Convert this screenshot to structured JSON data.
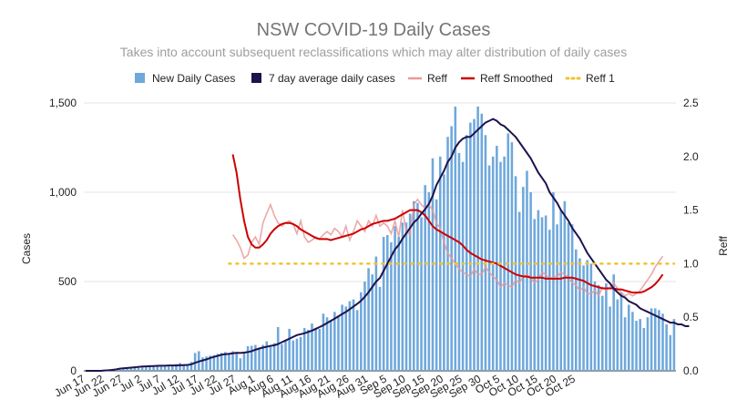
{
  "chart_data": {
    "type": "bar",
    "title": "NSW COVID-19 Daily Cases",
    "subtitle": "Takes into account subsequent reclassifications which may alter distribution of daily cases",
    "ylabel": "Cases",
    "y2label": "Reff",
    "ylim": [
      0,
      1500
    ],
    "y2lim": [
      0,
      2.5
    ],
    "yticks": [
      "0",
      "500",
      "1,000",
      "1,500"
    ],
    "y2ticks": [
      "0.0",
      "0.5",
      "1.0",
      "1.5",
      "2.0",
      "2.5"
    ],
    "xticks": [
      "Jun 17",
      "Jun 22",
      "Jun 27",
      "Jul 2",
      "Jul 7",
      "Jul 12",
      "Jul 17",
      "Jul 22",
      "Jul 27",
      "Aug 1",
      "Aug 6",
      "Aug 11",
      "Aug 16",
      "Aug 21",
      "Aug 26",
      "Aug 31",
      "Sep 5",
      "Sep 10",
      "Sep 15",
      "Sep 20",
      "Sep 25",
      "Sep 30",
      "Oct 5",
      "Oct 10",
      "Oct 15",
      "Oct 20",
      "Oct 25"
    ],
    "x_start": "Jun 17",
    "legend": {
      "position": "top",
      "items": [
        {
          "label": "New Daily Cases",
          "color": "#6fa8dc",
          "shape": "box"
        },
        {
          "label": "7 day average daily cases",
          "color": "#20124d",
          "shape": "box"
        },
        {
          "label": "Reff",
          "color": "#ea9999",
          "shape": "line"
        },
        {
          "label": "Reff Smoothed",
          "color": "#cc0000",
          "shape": "line"
        },
        {
          "label": "Reff 1",
          "color": "#f1c232",
          "shape": "dotted"
        }
      ]
    },
    "series": [
      {
        "name": "New Daily Cases",
        "axis": "left",
        "color": "#6fa8dc",
        "values": [
          0,
          0,
          0,
          0,
          0,
          3,
          4,
          7,
          7,
          10,
          13,
          18,
          20,
          22,
          27,
          24,
          24,
          26,
          30,
          25,
          30,
          32,
          25,
          32,
          38,
          44,
          35,
          32,
          50,
          100,
          110,
          75,
          80,
          85,
          88,
          95,
          100,
          105,
          98,
          110,
          105,
          70,
          105,
          138,
          140,
          145,
          125,
          145,
          165,
          140,
          155,
          245,
          150,
          170,
          235,
          170,
          180,
          190,
          240,
          230,
          265,
          240,
          235,
          320,
          300,
          285,
          330,
          310,
          370,
          360,
          390,
          400,
          340,
          440,
          500,
          575,
          540,
          640,
          470,
          750,
          760,
          720,
          810,
          750,
          830,
          830,
          880,
          950,
          940,
          860,
          1040,
          1000,
          1190,
          960,
          1200,
          1100,
          1310,
          1370,
          1480,
          1220,
          1170,
          1320,
          1390,
          1410,
          1480,
          1440,
          1320,
          1150,
          1200,
          1260,
          1170,
          1200,
          1330,
          1280,
          1090,
          890,
          1030,
          1120,
          1000,
          850,
          900,
          860,
          870,
          790,
          1000,
          820,
          900,
          950,
          830,
          820,
          680,
          630,
          590,
          620,
          600,
          500,
          480,
          420,
          490,
          360,
          540,
          400,
          440,
          300,
          370,
          330,
          280,
          290,
          240,
          300,
          350,
          350,
          340,
          320,
          260,
          200,
          290
        ]
      },
      {
        "name": "7 day average daily cases",
        "axis": "left",
        "color": "#20124d",
        "values": [
          0,
          0,
          0,
          0,
          0,
          2,
          3,
          5,
          8,
          12,
          14,
          16,
          18,
          20,
          22,
          24,
          25,
          26,
          27,
          28,
          29,
          29,
          30,
          30,
          30,
          31,
          32,
          33,
          36,
          45,
          52,
          58,
          64,
          72,
          78,
          84,
          90,
          93,
          95,
          98,
          101,
          100,
          102,
          105,
          110,
          118,
          125,
          130,
          135,
          140,
          143,
          150,
          160,
          170,
          180,
          190,
          200,
          205,
          210,
          218,
          225,
          235,
          245,
          255,
          268,
          280,
          292,
          305,
          318,
          330,
          345,
          360,
          375,
          392,
          415,
          440,
          470,
          500,
          520,
          560,
          600,
          640,
          680,
          705,
          740,
          770,
          800,
          830,
          850,
          880,
          905,
          935,
          980,
          1040,
          1080,
          1120,
          1170,
          1200,
          1250,
          1280,
          1300,
          1310,
          1310,
          1330,
          1350,
          1370,
          1390,
          1400,
          1410,
          1400,
          1380,
          1370,
          1350,
          1330,
          1310,
          1280,
          1250,
          1220,
          1190,
          1150,
          1110,
          1080,
          1050,
          1000,
          970,
          940,
          900,
          870,
          840,
          800,
          770,
          740,
          700,
          660,
          630,
          600,
          570,
          540,
          510,
          490,
          460,
          440,
          420,
          410,
          390,
          380,
          370,
          350,
          340,
          330,
          320,
          310,
          300,
          290,
          280,
          270,
          270,
          260,
          260,
          250,
          250
        ]
      },
      {
        "name": "Reff",
        "axis": "right",
        "color": "#ea9999",
        "values": [
          null,
          null,
          null,
          null,
          null,
          null,
          null,
          null,
          null,
          null,
          null,
          null,
          null,
          null,
          null,
          null,
          null,
          null,
          null,
          null,
          null,
          null,
          null,
          null,
          null,
          null,
          null,
          null,
          null,
          null,
          null,
          null,
          null,
          null,
          null,
          null,
          null,
          null,
          null,
          1.27,
          1.22,
          1.15,
          1.05,
          1.08,
          1.2,
          1.25,
          1.18,
          1.38,
          1.47,
          1.55,
          1.45,
          1.38,
          1.35,
          1.38,
          1.4,
          1.37,
          1.28,
          1.4,
          1.25,
          1.2,
          1.22,
          1.25,
          1.23,
          1.27,
          1.3,
          1.27,
          1.33,
          1.3,
          1.25,
          1.35,
          1.22,
          1.3,
          1.4,
          1.35,
          1.3,
          1.4,
          1.35,
          1.45,
          1.35,
          1.38,
          1.35,
          1.28,
          1.4,
          1.25,
          1.5,
          1.3,
          1.27,
          1.55,
          1.6,
          1.55,
          1.52,
          1.55,
          1.5,
          1.38,
          1.33,
          1.2,
          1.1,
          1.05,
          1.0,
          0.95,
          0.92,
          0.9,
          0.88,
          0.95,
          0.9,
          0.9,
          0.97,
          0.92,
          0.88,
          0.85,
          0.78,
          0.82,
          0.8,
          0.78,
          0.85,
          0.82,
          0.88,
          0.9,
          0.87,
          0.82,
          0.85,
          0.92,
          0.9,
          0.85,
          0.88,
          0.88,
          0.92,
          0.9,
          0.87,
          0.82,
          0.8,
          0.75,
          0.78,
          0.72,
          0.72,
          0.75,
          0.7,
          0.78,
          0.75,
          0.78,
          0.82,
          0.77,
          0.73,
          0.7,
          0.72,
          0.7,
          0.72,
          0.75,
          0.8,
          0.85,
          0.9,
          0.97,
          1.02,
          1.07
        ]
      },
      {
        "name": "Reff Smoothed",
        "axis": "right",
        "color": "#cc0000",
        "values": [
          null,
          null,
          null,
          null,
          null,
          null,
          null,
          null,
          null,
          null,
          null,
          null,
          null,
          null,
          null,
          null,
          null,
          null,
          null,
          null,
          null,
          null,
          null,
          null,
          null,
          null,
          null,
          null,
          null,
          null,
          null,
          null,
          null,
          null,
          null,
          null,
          null,
          null,
          null,
          2.02,
          1.85,
          1.6,
          1.4,
          1.25,
          1.18,
          1.15,
          1.15,
          1.18,
          1.22,
          1.28,
          1.32,
          1.35,
          1.37,
          1.38,
          1.38,
          1.37,
          1.35,
          1.32,
          1.3,
          1.28,
          1.26,
          1.24,
          1.23,
          1.23,
          1.23,
          1.22,
          1.23,
          1.24,
          1.25,
          1.26,
          1.27,
          1.28,
          1.3,
          1.32,
          1.33,
          1.35,
          1.37,
          1.38,
          1.39,
          1.4,
          1.4,
          1.41,
          1.42,
          1.44,
          1.46,
          1.48,
          1.5,
          1.5,
          1.5,
          1.48,
          1.45,
          1.4,
          1.35,
          1.32,
          1.3,
          1.28,
          1.26,
          1.24,
          1.22,
          1.2,
          1.17,
          1.13,
          1.1,
          1.08,
          1.06,
          1.04,
          1.03,
          1.02,
          1.01,
          1.0,
          0.98,
          0.96,
          0.94,
          0.92,
          0.9,
          0.89,
          0.88,
          0.88,
          0.87,
          0.87,
          0.87,
          0.87,
          0.86,
          0.86,
          0.86,
          0.86,
          0.86,
          0.87,
          0.87,
          0.87,
          0.86,
          0.85,
          0.84,
          0.82,
          0.8,
          0.79,
          0.78,
          0.77,
          0.77,
          0.77,
          0.77,
          0.76,
          0.76,
          0.75,
          0.74,
          0.73,
          0.73,
          0.73,
          0.74,
          0.76,
          0.78,
          0.81,
          0.85,
          0.9
        ]
      },
      {
        "name": "Reff 1",
        "axis": "right",
        "color": "#f1c232",
        "values": [
          null,
          null,
          null,
          null,
          null,
          null,
          null,
          null,
          null,
          null,
          null,
          null,
          null,
          null,
          null,
          null,
          null,
          null,
          null,
          null,
          null,
          null,
          null,
          null,
          null,
          null,
          null,
          null,
          null,
          null,
          null,
          null,
          null,
          null,
          null,
          null,
          null,
          null,
          1,
          1,
          1,
          1,
          1,
          1,
          1,
          1,
          1,
          1,
          1,
          1,
          1,
          1,
          1,
          1,
          1,
          1,
          1,
          1,
          1,
          1,
          1,
          1,
          1,
          1,
          1,
          1,
          1,
          1,
          1,
          1,
          1,
          1,
          1,
          1,
          1,
          1,
          1,
          1,
          1,
          1,
          1,
          1,
          1,
          1,
          1,
          1,
          1,
          1,
          1,
          1,
          1,
          1,
          1,
          1,
          1,
          1,
          1,
          1,
          1,
          1,
          1,
          1,
          1,
          1,
          1,
          1,
          1,
          1,
          1,
          1,
          1,
          1,
          1,
          1,
          1,
          1,
          1,
          1,
          1,
          1,
          1,
          1,
          1,
          1,
          1,
          1,
          1,
          1,
          1,
          1,
          1,
          1,
          1,
          1,
          1,
          1,
          1,
          1,
          1,
          1,
          1,
          1,
          1,
          1,
          1,
          1,
          1,
          1,
          1,
          1,
          1,
          1,
          1,
          1,
          1,
          1,
          1
        ]
      }
    ]
  }
}
